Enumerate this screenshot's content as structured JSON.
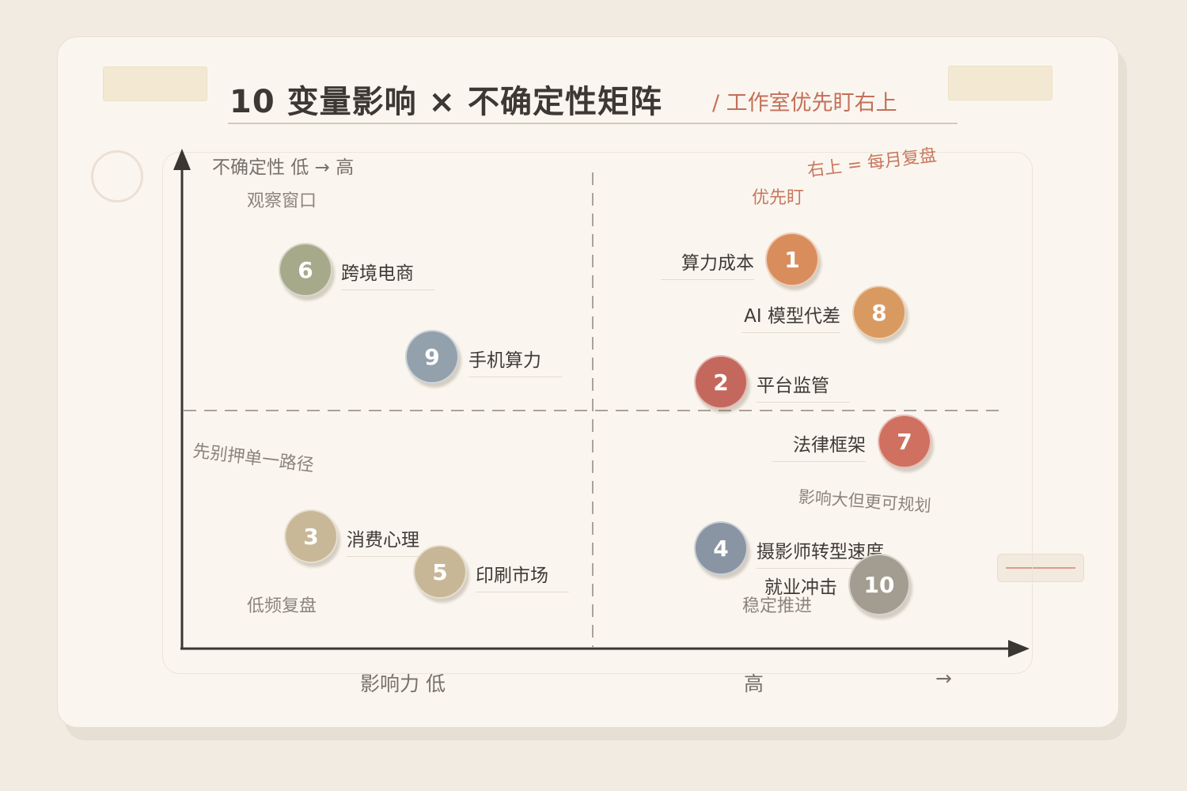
{
  "title": "10 变量影响 × 不确定性矩阵",
  "subtitle": "/ 工作室优先盯右上",
  "axes": {
    "y_label": "不确定性 低 → 高",
    "x_low": "影响力 低",
    "x_high": "高",
    "x_arrow": "→"
  },
  "quadrants": {
    "top_left": "观察窗口",
    "top_right": "优先盯",
    "top_right_note": "右上 = 每月复盘",
    "bottom_left_note": "先别押单一路径",
    "bottom_left": "低频复盘",
    "bottom_right_note": "影响大但更可规划",
    "bottom_right": "稳定推进"
  },
  "variables": [
    {
      "num": "1",
      "label": "算力成本",
      "color": "#d98d5c"
    },
    {
      "num": "2",
      "label": "平台监管",
      "color": "#c4685d"
    },
    {
      "num": "3",
      "label": "消费心理",
      "color": "#c9b898"
    },
    {
      "num": "4",
      "label": "摄影师转型速度",
      "color": "#8a95a3"
    },
    {
      "num": "5",
      "label": "印刷市场",
      "color": "#c7b796"
    },
    {
      "num": "6",
      "label": "跨境电商",
      "color": "#a7a98b"
    },
    {
      "num": "7",
      "label": "法律框架",
      "color": "#cf7060"
    },
    {
      "num": "8",
      "label": "AI 模型代差",
      "color": "#d99a62"
    },
    {
      "num": "9",
      "label": "手机算力",
      "color": "#93a1ad"
    },
    {
      "num": "10",
      "label": "就业冲击",
      "color": "#a39c90"
    }
  ],
  "colors": {
    "axis": "#3a3632",
    "divider": "#aaa29a",
    "accent": "#c46f5a"
  }
}
